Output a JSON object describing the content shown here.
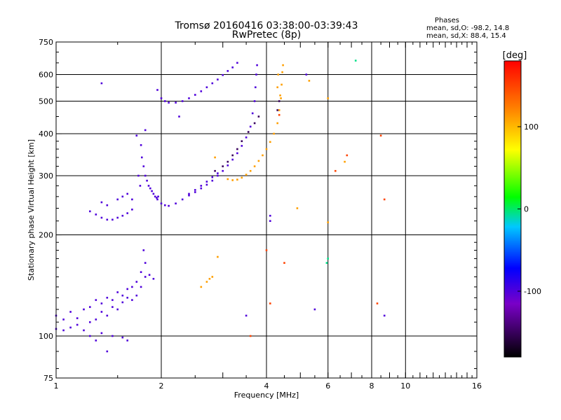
{
  "chart_data": {
    "type": "scatter",
    "title": "Tromsø 20160416 03:38:00-03:39:43",
    "subtitle": "RwPretec (8p)",
    "stats": {
      "heading": "Phases",
      "line_o": "mean, sd,O: -98.2, 14.8",
      "line_x": "mean, sd,X:  88.4, 15.4"
    },
    "xlabel": "Frequency [MHz]",
    "ylabel": "Stationary phase Virtual Height [km]",
    "x_scale": "log2",
    "y_scale": "log",
    "xlim": [
      1,
      16
    ],
    "ylim": [
      75,
      750
    ],
    "x_ticks": [
      1,
      2,
      4,
      6,
      8,
      10,
      16
    ],
    "x_tick_labels": [
      "1",
      "2",
      "4",
      "6",
      "8",
      "10",
      "16"
    ],
    "y_ticks": [
      75,
      100,
      200,
      300,
      400,
      500,
      600,
      750
    ],
    "y_tick_labels": [
      "75",
      "100",
      "200",
      "300",
      "400",
      "500",
      "600",
      "750"
    ],
    "x_grid": [
      2,
      4,
      6,
      8,
      10
    ],
    "y_grid": [
      100,
      200,
      300,
      400,
      500,
      600
    ],
    "colorbar": {
      "label": "[deg]",
      "range": [
        -180,
        180
      ],
      "ticks": [
        100,
        0,
        -100
      ],
      "tick_labels": [
        "100",
        "0",
        "-100"
      ]
    },
    "series": [
      {
        "color_phase": -100,
        "points": [
          [
            1.0,
            115
          ],
          [
            1.05,
            112
          ],
          [
            1.1,
            118
          ],
          [
            1.15,
            113
          ],
          [
            1.2,
            120
          ],
          [
            1.25,
            122
          ],
          [
            1.3,
            128
          ],
          [
            1.35,
            125
          ],
          [
            1.4,
            130
          ],
          [
            1.45,
            128
          ],
          [
            1.5,
            135
          ],
          [
            1.55,
            132
          ],
          [
            1.6,
            138
          ],
          [
            1.65,
            140
          ],
          [
            1.7,
            145
          ],
          [
            1.75,
            155
          ],
          [
            1.8,
            165
          ],
          [
            1.78,
            180
          ],
          [
            1.85,
            152
          ],
          [
            1.9,
            148
          ],
          [
            1.0,
            105
          ],
          [
            1.05,
            104
          ],
          [
            1.1,
            106
          ],
          [
            1.15,
            108
          ],
          [
            1.2,
            104
          ],
          [
            1.25,
            110
          ],
          [
            1.3,
            112
          ],
          [
            1.35,
            118
          ],
          [
            1.4,
            115
          ],
          [
            1.45,
            122
          ],
          [
            1.5,
            120
          ],
          [
            1.55,
            126
          ],
          [
            1.6,
            130
          ],
          [
            1.65,
            128
          ],
          [
            1.7,
            132
          ],
          [
            1.75,
            140
          ],
          [
            1.8,
            150
          ],
          [
            1.25,
            100
          ],
          [
            1.3,
            97
          ],
          [
            1.35,
            102
          ],
          [
            1.4,
            90
          ],
          [
            1.45,
            100
          ],
          [
            1.55,
            99
          ],
          [
            1.6,
            97
          ],
          [
            1.25,
            235
          ],
          [
            1.3,
            230
          ],
          [
            1.35,
            225
          ],
          [
            1.4,
            222
          ],
          [
            1.45,
            222
          ],
          [
            1.5,
            225
          ],
          [
            1.55,
            228
          ],
          [
            1.6,
            232
          ],
          [
            1.65,
            238
          ],
          [
            1.5,
            255
          ],
          [
            1.55,
            260
          ],
          [
            1.6,
            265
          ],
          [
            1.4,
            245
          ],
          [
            1.35,
            250
          ],
          [
            1.65,
            255
          ],
          [
            1.75,
            370
          ],
          [
            1.76,
            340
          ],
          [
            1.78,
            320
          ],
          [
            1.8,
            300
          ],
          [
            1.82,
            290
          ],
          [
            1.84,
            280
          ],
          [
            1.86,
            275
          ],
          [
            1.88,
            270
          ],
          [
            1.9,
            265
          ],
          [
            1.92,
            260
          ],
          [
            1.94,
            258
          ],
          [
            1.96,
            260
          ],
          [
            1.8,
            410
          ],
          [
            1.7,
            395
          ],
          [
            1.72,
            300
          ],
          [
            1.74,
            280
          ],
          [
            1.95,
            255
          ],
          [
            2.0,
            248
          ],
          [
            2.05,
            245
          ],
          [
            2.1,
            244
          ],
          [
            2.2,
            248
          ],
          [
            2.3,
            255
          ],
          [
            2.4,
            262
          ],
          [
            2.5,
            268
          ],
          [
            2.6,
            275
          ],
          [
            2.7,
            282
          ],
          [
            2.8,
            290
          ],
          [
            2.9,
            300
          ],
          [
            3.0,
            310
          ],
          [
            3.1,
            322
          ],
          [
            3.2,
            335
          ],
          [
            3.3,
            350
          ],
          [
            3.4,
            368
          ],
          [
            3.5,
            390
          ],
          [
            3.6,
            420
          ],
          [
            3.65,
            460
          ],
          [
            3.7,
            500
          ],
          [
            3.72,
            550
          ],
          [
            3.74,
            600
          ],
          [
            3.76,
            640
          ],
          [
            2.4,
            265
          ],
          [
            2.5,
            272
          ],
          [
            2.6,
            280
          ],
          [
            2.7,
            288
          ],
          [
            2.8,
            297
          ],
          [
            2.9,
            305
          ],
          [
            1.95,
            540
          ],
          [
            2.0,
            510
          ],
          [
            2.05,
            500
          ],
          [
            2.1,
            495
          ],
          [
            2.2,
            495
          ],
          [
            2.3,
            500
          ],
          [
            2.4,
            510
          ],
          [
            2.5,
            522
          ],
          [
            2.6,
            535
          ],
          [
            2.7,
            550
          ],
          [
            2.8,
            565
          ],
          [
            2.9,
            580
          ],
          [
            3.0,
            598
          ],
          [
            3.1,
            615
          ],
          [
            3.2,
            630
          ],
          [
            3.3,
            650
          ],
          [
            1.35,
            565
          ],
          [
            2.25,
            450
          ],
          [
            4.1,
            228
          ],
          [
            4.1,
            220
          ],
          [
            5.5,
            120
          ],
          [
            5.2,
            600
          ],
          [
            3.5,
            115
          ],
          [
            8.7,
            115
          ]
        ]
      },
      {
        "color_phase": -150,
        "points": [
          [
            2.85,
            310
          ],
          [
            3.0,
            320
          ],
          [
            3.1,
            330
          ],
          [
            3.2,
            345
          ],
          [
            3.3,
            360
          ],
          [
            3.4,
            380
          ],
          [
            3.55,
            405
          ],
          [
            3.7,
            430
          ],
          [
            3.8,
            450
          ],
          [
            4.3,
            470
          ],
          [
            4.35,
            500
          ]
        ]
      },
      {
        "color_phase": 110,
        "points": [
          [
            3.1,
            293
          ],
          [
            3.2,
            291
          ],
          [
            3.3,
            292
          ],
          [
            3.4,
            296
          ],
          [
            3.5,
            302
          ],
          [
            3.6,
            310
          ],
          [
            3.7,
            320
          ],
          [
            3.8,
            332
          ],
          [
            3.9,
            345
          ],
          [
            4.0,
            360
          ],
          [
            4.1,
            378
          ],
          [
            4.2,
            400
          ],
          [
            4.3,
            430
          ],
          [
            4.35,
            470
          ],
          [
            4.4,
            510
          ],
          [
            4.42,
            560
          ],
          [
            4.44,
            610
          ],
          [
            4.46,
            640
          ],
          [
            4.3,
            550
          ],
          [
            4.32,
            600
          ],
          [
            4.38,
            520
          ],
          [
            2.6,
            140
          ],
          [
            2.7,
            145
          ],
          [
            2.75,
            148
          ],
          [
            2.8,
            150
          ],
          [
            2.9,
            172
          ],
          [
            2.85,
            340
          ],
          [
            4.9,
            240
          ],
          [
            5.3,
            575
          ],
          [
            6.0,
            218
          ],
          [
            6.0,
            510
          ],
          [
            6.7,
            330
          ]
        ]
      },
      {
        "color_phase": 150,
        "points": [
          [
            4.0,
            180
          ],
          [
            4.5,
            165
          ],
          [
            3.6,
            100
          ],
          [
            4.1,
            125
          ],
          [
            4.35,
            455
          ],
          [
            8.5,
            395
          ],
          [
            8.3,
            125
          ],
          [
            8.7,
            255
          ],
          [
            6.8,
            345
          ],
          [
            6.3,
            310
          ]
        ]
      },
      {
        "color_phase": -5,
        "points": [
          [
            6.0,
            170
          ],
          [
            5.95,
            165
          ],
          [
            7.2,
            660
          ]
        ]
      }
    ]
  }
}
